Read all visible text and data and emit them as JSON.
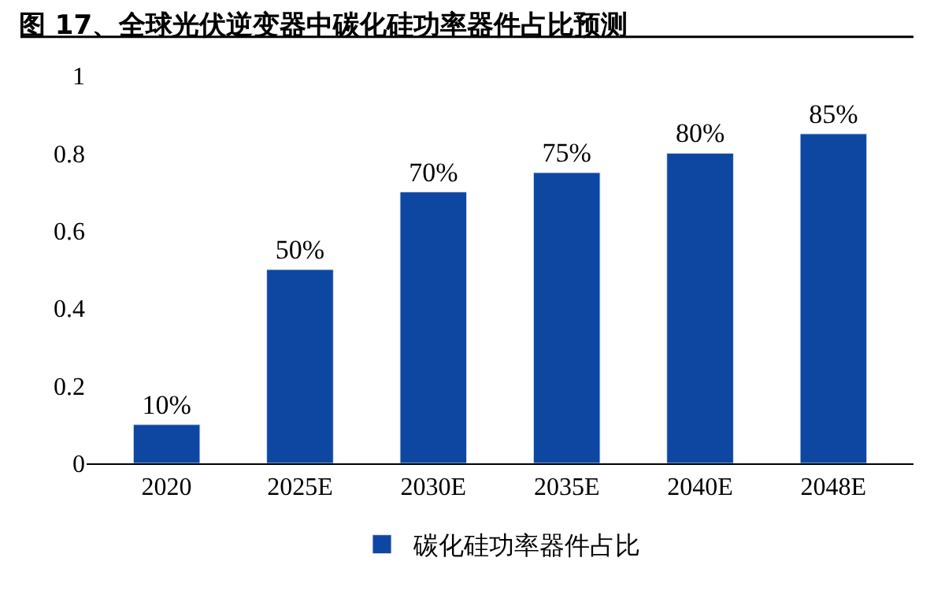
{
  "chart_data": {
    "type": "bar",
    "title": "图 17、全球光伏逆变器中碳化硅功率器件占比预测",
    "categories": [
      "2020",
      "2025E",
      "2030E",
      "2035E",
      "2040E",
      "2048E"
    ],
    "series": [
      {
        "name": "碳化硅功率器件占比",
        "color": "#0e47a1",
        "values": [
          0.1,
          0.5,
          0.7,
          0.75,
          0.8,
          0.85
        ],
        "value_labels": [
          "10%",
          "50%",
          "70%",
          "75%",
          "80%",
          "85%"
        ]
      }
    ],
    "ylim": [
      0,
      1
    ],
    "yticks": [
      0,
      0.2,
      0.4,
      0.6,
      0.8,
      1
    ],
    "legend": "bottom"
  }
}
